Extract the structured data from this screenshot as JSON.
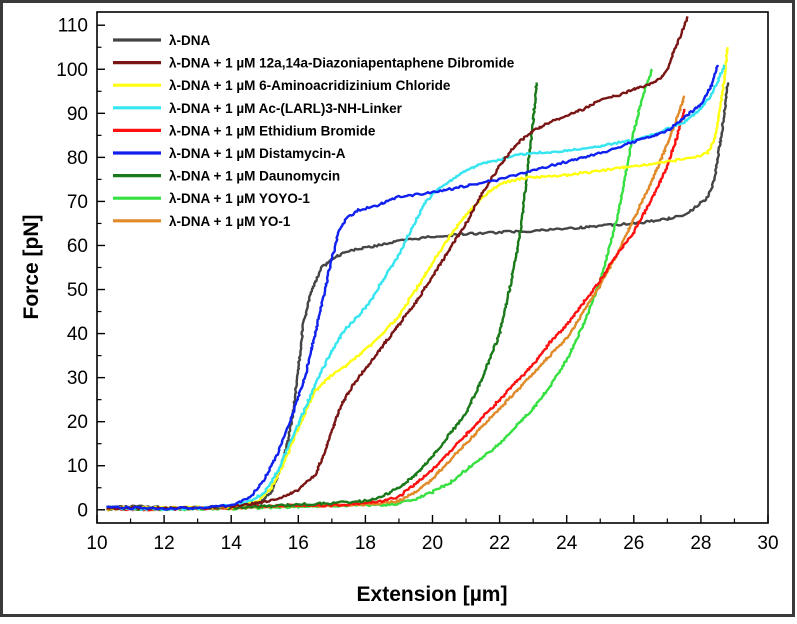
{
  "chart_data": {
    "type": "line",
    "xlabel": "Extension [µm]",
    "ylabel": "Force [pN]",
    "xlim": [
      10,
      30
    ],
    "ylim": [
      -3,
      113
    ],
    "x_ticks": [
      "10",
      "12",
      "14",
      "16",
      "18",
      "20",
      "22",
      "24",
      "26",
      "28",
      "30"
    ],
    "y_ticks": [
      "0",
      "10",
      "20",
      "30",
      "40",
      "50",
      "60",
      "70",
      "80",
      "90",
      "100",
      "110"
    ],
    "grid": false,
    "legend_position": "top-left",
    "series": [
      {
        "name": "λ-DNA",
        "color": "#454545",
        "points": [
          [
            10.3,
            0.5
          ],
          [
            11,
            0.8
          ],
          [
            12,
            0.5
          ],
          [
            13,
            0.5
          ],
          [
            14,
            0.7
          ],
          [
            14.8,
            1.5
          ],
          [
            15.2,
            4
          ],
          [
            15.5,
            10
          ],
          [
            15.7,
            16
          ],
          [
            15.85,
            22
          ],
          [
            16,
            32
          ],
          [
            16.15,
            42
          ],
          [
            16.4,
            50
          ],
          [
            16.7,
            55
          ],
          [
            17.1,
            57.5
          ],
          [
            17.6,
            59
          ],
          [
            18,
            59.5
          ],
          [
            19,
            61
          ],
          [
            20,
            62
          ],
          [
            21,
            62.6
          ],
          [
            22,
            63
          ],
          [
            23,
            63.3
          ],
          [
            24,
            63.8
          ],
          [
            25,
            64.5
          ],
          [
            26,
            65
          ],
          [
            27,
            66
          ],
          [
            27.5,
            67
          ],
          [
            27.9,
            69
          ],
          [
            28.2,
            71
          ],
          [
            28.4,
            75
          ],
          [
            28.55,
            82
          ],
          [
            28.7,
            90
          ],
          [
            28.8,
            97
          ]
        ]
      },
      {
        "name": "λ-DNA + 1 µM  12a,14a-Diazoniapentaphene Dibromide",
        "color": "#7a1515",
        "points": [
          [
            10.3,
            0.3
          ],
          [
            11,
            0.5
          ],
          [
            12,
            0.3
          ],
          [
            13,
            0.4
          ],
          [
            14,
            0.8
          ],
          [
            14.8,
            1.5
          ],
          [
            15.4,
            2.5
          ],
          [
            16,
            4.5
          ],
          [
            16.5,
            8
          ],
          [
            16.8,
            13
          ],
          [
            17,
            18
          ],
          [
            17.3,
            24
          ],
          [
            17.6,
            28
          ],
          [
            18,
            32
          ],
          [
            18.5,
            37
          ],
          [
            19,
            42
          ],
          [
            19.5,
            47
          ],
          [
            20,
            53
          ],
          [
            20.5,
            59
          ],
          [
            21,
            65
          ],
          [
            21.5,
            72
          ],
          [
            22,
            78
          ],
          [
            22.5,
            83
          ],
          [
            23,
            86
          ],
          [
            23.5,
            88
          ],
          [
            24,
            89.5
          ],
          [
            24.5,
            91
          ],
          [
            25,
            93
          ],
          [
            25.5,
            94
          ],
          [
            26,
            95.5
          ],
          [
            26.5,
            96.5
          ],
          [
            26.8,
            98
          ],
          [
            27,
            100
          ],
          [
            27.2,
            104
          ],
          [
            27.4,
            108
          ],
          [
            27.6,
            112
          ]
        ]
      },
      {
        "name": "λ-DNA + 1 µM  6-Aminoacridizinium Chloride",
        "color": "#ffff10",
        "points": [
          [
            10.3,
            0.3
          ],
          [
            11,
            0.5
          ],
          [
            12,
            0.4
          ],
          [
            13,
            0.5
          ],
          [
            14,
            0.6
          ],
          [
            14.8,
            2
          ],
          [
            15.2,
            5
          ],
          [
            15.6,
            11
          ],
          [
            15.9,
            17
          ],
          [
            16.2,
            22
          ],
          [
            16.5,
            27
          ],
          [
            16.9,
            30
          ],
          [
            17.3,
            32
          ],
          [
            17.8,
            35
          ],
          [
            18.4,
            39
          ],
          [
            19,
            44
          ],
          [
            19.5,
            50
          ],
          [
            20,
            56
          ],
          [
            20.5,
            62
          ],
          [
            21,
            67
          ],
          [
            21.5,
            71
          ],
          [
            22,
            74
          ],
          [
            22.5,
            75
          ],
          [
            23,
            75.5
          ],
          [
            24,
            76
          ],
          [
            25,
            77
          ],
          [
            26,
            78
          ],
          [
            27,
            79
          ],
          [
            27.8,
            80
          ],
          [
            28.2,
            81
          ],
          [
            28.4,
            84
          ],
          [
            28.55,
            90
          ],
          [
            28.7,
            98
          ],
          [
            28.8,
            105
          ]
        ]
      },
      {
        "name": "λ-DNA + 1 µM  Ac-(LARL)3-NH-Linker",
        "color": "#35e5f0",
        "points": [
          [
            10.3,
            0.5
          ],
          [
            11,
            0.3
          ],
          [
            12,
            0.2
          ],
          [
            13,
            0.3
          ],
          [
            14,
            1
          ],
          [
            14.6,
            2
          ],
          [
            15,
            4
          ],
          [
            15.4,
            9
          ],
          [
            15.8,
            16
          ],
          [
            16.2,
            23
          ],
          [
            16.6,
            30
          ],
          [
            17,
            36
          ],
          [
            17.4,
            41
          ],
          [
            17.8,
            44
          ],
          [
            18.2,
            48
          ],
          [
            18.6,
            53
          ],
          [
            19,
            58
          ],
          [
            19.4,
            64
          ],
          [
            19.8,
            70
          ],
          [
            20.2,
            73
          ],
          [
            20.6,
            75
          ],
          [
            21,
            77
          ],
          [
            21.5,
            78.5
          ],
          [
            22,
            79.5
          ],
          [
            22.5,
            80.5
          ],
          [
            23,
            81
          ],
          [
            24,
            81.5
          ],
          [
            25,
            82.5
          ],
          [
            26,
            84
          ],
          [
            26.5,
            85
          ],
          [
            27,
            86.5
          ],
          [
            27.5,
            88
          ],
          [
            28,
            91
          ],
          [
            28.3,
            94
          ],
          [
            28.5,
            97
          ],
          [
            28.7,
            101
          ]
        ]
      },
      {
        "name": "λ-DNA + 1 µM  Ethidium Bromide",
        "color": "#ff1010",
        "points": [
          [
            10.3,
            0.3
          ],
          [
            11,
            0.1
          ],
          [
            12,
            0.2
          ],
          [
            13,
            0.3
          ],
          [
            14,
            0.5
          ],
          [
            15,
            0.8
          ],
          [
            16,
            1
          ],
          [
            17,
            1
          ],
          [
            18,
            1.5
          ],
          [
            18.5,
            2
          ],
          [
            19,
            3
          ],
          [
            19.5,
            6
          ],
          [
            20,
            9
          ],
          [
            20.5,
            13
          ],
          [
            21,
            17
          ],
          [
            21.5,
            21
          ],
          [
            22,
            25
          ],
          [
            22.5,
            29
          ],
          [
            23,
            33
          ],
          [
            23.5,
            38
          ],
          [
            24,
            42
          ],
          [
            24.5,
            47
          ],
          [
            25,
            52
          ],
          [
            25.5,
            58
          ],
          [
            26,
            63
          ],
          [
            26.5,
            70
          ],
          [
            27,
            78
          ],
          [
            27.3,
            85
          ],
          [
            27.5,
            91
          ]
        ]
      },
      {
        "name": "λ-DNA + 1 µM  Distamycin-A",
        "color": "#1020ee",
        "points": [
          [
            10.3,
            0.6
          ],
          [
            11,
            0.4
          ],
          [
            12,
            0.3
          ],
          [
            13,
            0.4
          ],
          [
            14,
            1
          ],
          [
            14.6,
            3
          ],
          [
            15,
            7
          ],
          [
            15.4,
            13
          ],
          [
            15.8,
            21
          ],
          [
            16.2,
            30
          ],
          [
            16.5,
            40
          ],
          [
            16.8,
            50
          ],
          [
            17,
            57
          ],
          [
            17.2,
            63
          ],
          [
            17.4,
            66
          ],
          [
            17.8,
            68
          ],
          [
            18.3,
            69
          ],
          [
            19,
            71
          ],
          [
            20,
            72
          ],
          [
            21,
            73.5
          ],
          [
            22,
            75
          ],
          [
            23,
            77
          ],
          [
            24,
            79
          ],
          [
            25,
            81
          ],
          [
            26,
            83.5
          ],
          [
            27,
            86
          ],
          [
            27.5,
            89
          ],
          [
            28,
            92
          ],
          [
            28.3,
            96
          ],
          [
            28.5,
            101
          ]
        ]
      },
      {
        "name": "λ-DNA + 1 µM  Daunomycin",
        "color": "#1a7a1a",
        "points": [
          [
            10.3,
            0.2
          ],
          [
            11,
            0.3
          ],
          [
            12,
            0.2
          ],
          [
            13,
            0.4
          ],
          [
            14,
            0.5
          ],
          [
            15,
            0.8
          ],
          [
            16,
            1.2
          ],
          [
            17,
            1.5
          ],
          [
            18,
            2
          ],
          [
            18.5,
            3
          ],
          [
            19,
            5
          ],
          [
            19.5,
            8
          ],
          [
            20,
            12
          ],
          [
            20.5,
            17
          ],
          [
            21,
            22
          ],
          [
            21.5,
            30
          ],
          [
            22,
            40
          ],
          [
            22.3,
            50
          ],
          [
            22.6,
            62
          ],
          [
            22.8,
            75
          ],
          [
            23,
            88
          ],
          [
            23.1,
            97
          ]
        ]
      },
      {
        "name": "λ-DNA + 1 µM  YOYO-1",
        "color": "#36e040",
        "points": [
          [
            10.3,
            0.2
          ],
          [
            11,
            0.2
          ],
          [
            12,
            0.1
          ],
          [
            13,
            0.2
          ],
          [
            14,
            0.3
          ],
          [
            15,
            0.5
          ],
          [
            16,
            0.7
          ],
          [
            17,
            0.9
          ],
          [
            18,
            1
          ],
          [
            18.5,
            1
          ],
          [
            19,
            1.5
          ],
          [
            19.5,
            2.5
          ],
          [
            20,
            4
          ],
          [
            20.5,
            6
          ],
          [
            21,
            9
          ],
          [
            21.5,
            12
          ],
          [
            22,
            15
          ],
          [
            22.5,
            19
          ],
          [
            23,
            23
          ],
          [
            23.5,
            28
          ],
          [
            24,
            34
          ],
          [
            24.5,
            42
          ],
          [
            25,
            52
          ],
          [
            25.5,
            66
          ],
          [
            25.8,
            78
          ],
          [
            26,
            86
          ],
          [
            26.2,
            92
          ],
          [
            26.4,
            97
          ],
          [
            26.55,
            100
          ]
        ]
      },
      {
        "name": "λ-DNA + 1 µM  YO-1",
        "color": "#e08a28",
        "points": [
          [
            10.3,
            0.1
          ],
          [
            11,
            0.1
          ],
          [
            12,
            0.2
          ],
          [
            13,
            0.3
          ],
          [
            14,
            0.4
          ],
          [
            15,
            0.7
          ],
          [
            16,
            0.9
          ],
          [
            17,
            1
          ],
          [
            18,
            1.2
          ],
          [
            18.5,
            1.5
          ],
          [
            19,
            2
          ],
          [
            19.5,
            4
          ],
          [
            20,
            7
          ],
          [
            20.5,
            11
          ],
          [
            21,
            15
          ],
          [
            21.5,
            19
          ],
          [
            22,
            23
          ],
          [
            22.5,
            27
          ],
          [
            23,
            31
          ],
          [
            23.5,
            35
          ],
          [
            24,
            39
          ],
          [
            24.5,
            45
          ],
          [
            25,
            51
          ],
          [
            25.5,
            58
          ],
          [
            26,
            66
          ],
          [
            26.5,
            74
          ],
          [
            27,
            83
          ],
          [
            27.3,
            89
          ],
          [
            27.5,
            94
          ]
        ]
      }
    ]
  }
}
